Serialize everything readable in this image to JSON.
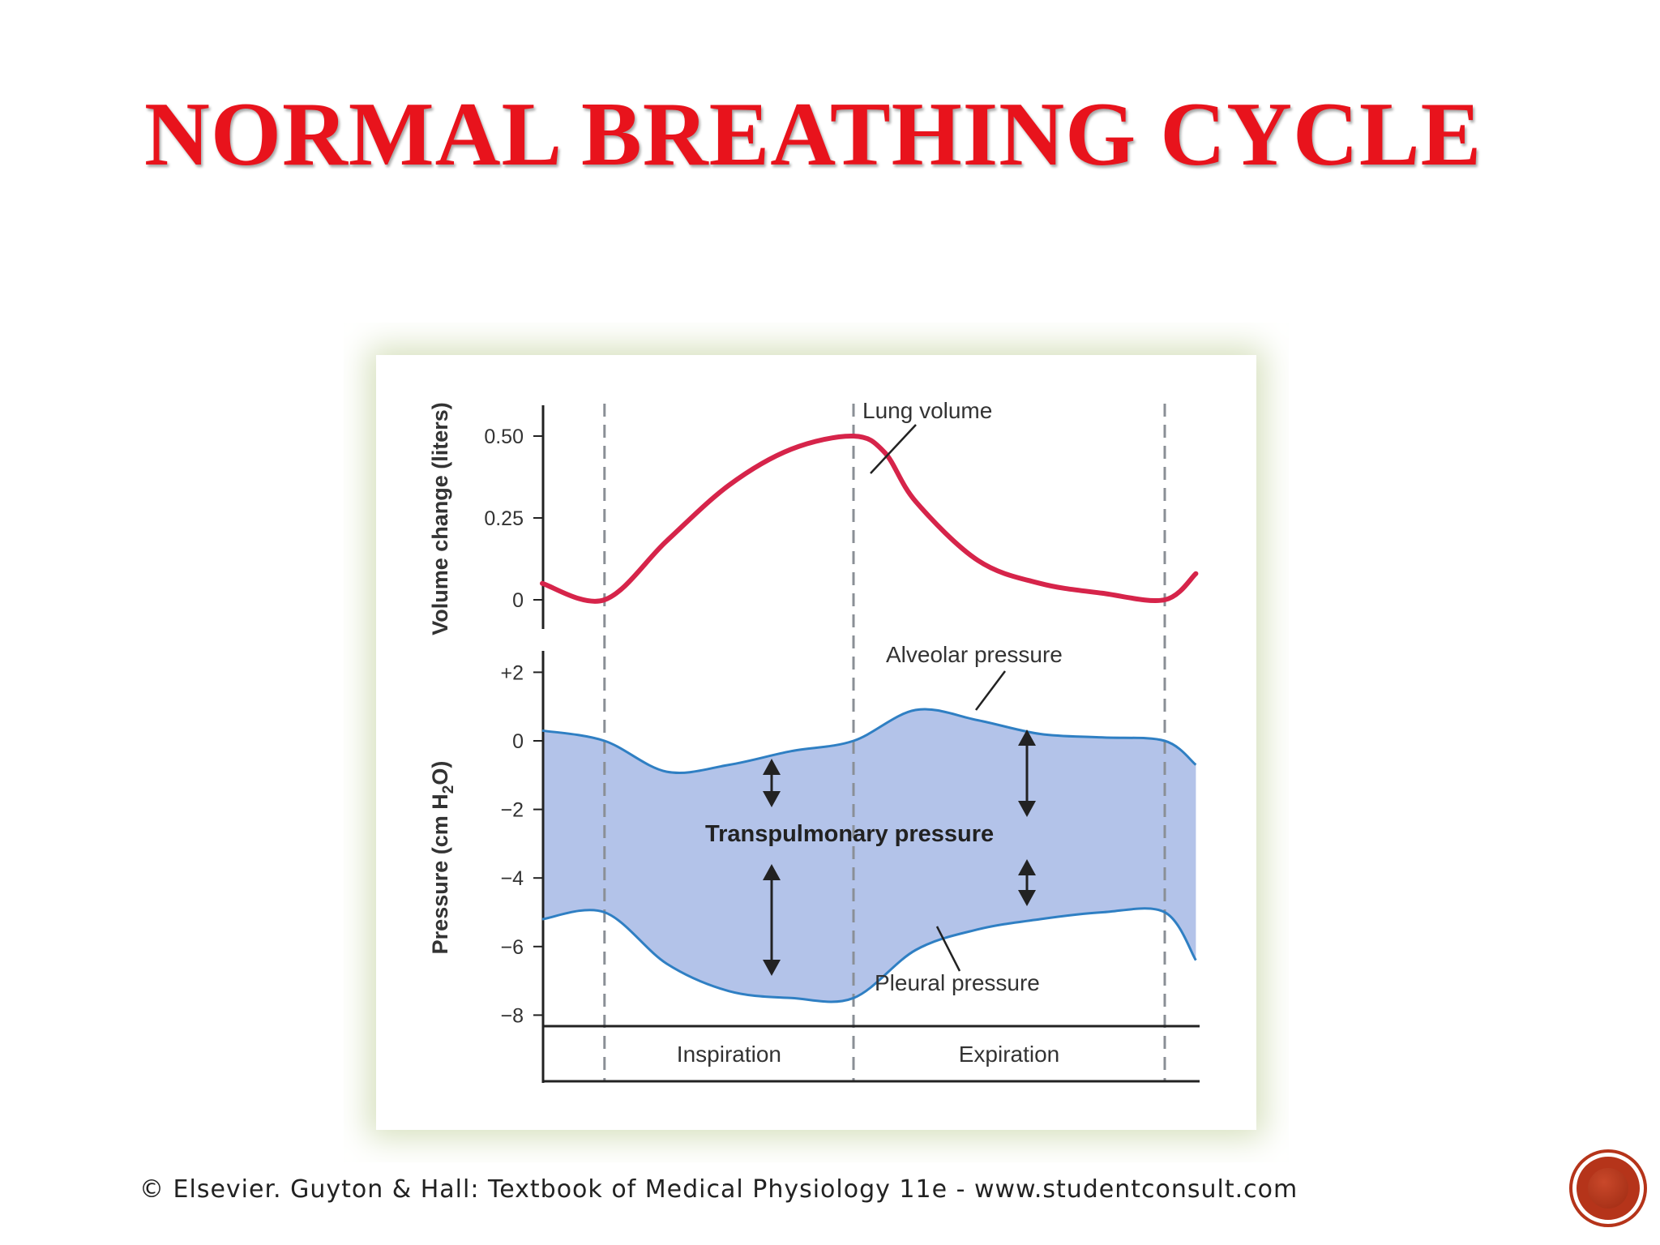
{
  "slide": {
    "title": "NORMAL BREATHING CYCLE",
    "caption": "© Elsevier. Guyton & Hall: Textbook of Medical Physiology 11e - www.studentconsult.com",
    "colors": {
      "title": "#e8131c",
      "lung_volume_line": "#d6244a",
      "pressure_lines": "#2f7fc3",
      "pressure_fill": "#b3c3e9",
      "figure_frame": "#d6e0bd",
      "nav_badge": "#b5341a"
    },
    "nav_badge_icon": "circle-badge-icon"
  },
  "chart_data": [
    {
      "type": "line",
      "title": "",
      "xlabel": "",
      "ylabel": "Volume change (liters)",
      "ylim": [
        -0.02,
        0.6
      ],
      "yticks": [
        "0.50",
        "0.25",
        "0"
      ],
      "ytick_values": [
        0.5,
        0.25,
        0
      ],
      "x_unit": "fraction of breathing cycle",
      "series": [
        {
          "name": "Lung volume",
          "x": [
            0.0,
            0.1,
            0.2,
            0.3,
            0.4,
            0.5,
            0.55,
            0.6,
            0.7,
            0.8,
            0.9,
            1.0,
            1.05
          ],
          "values": [
            0.05,
            0.0,
            0.18,
            0.35,
            0.46,
            0.5,
            0.45,
            0.3,
            0.12,
            0.05,
            0.02,
            0.0,
            0.08
          ]
        }
      ],
      "annotations": [
        "Lung volume"
      ]
    },
    {
      "type": "area",
      "title": "",
      "ylabel": "Pressure (cm H2O)",
      "ylim": [
        -8.5,
        2.3
      ],
      "yticks": [
        "+2",
        "0",
        "−2",
        "−4",
        "−6",
        "−8"
      ],
      "ytick_values": [
        2,
        0,
        -2,
        -4,
        -6,
        -8
      ],
      "series": [
        {
          "name": "Alveolar pressure",
          "x": [
            0.0,
            0.1,
            0.2,
            0.3,
            0.4,
            0.5,
            0.6,
            0.7,
            0.8,
            0.9,
            1.0,
            1.05
          ],
          "values": [
            0.3,
            0.0,
            -0.9,
            -0.7,
            -0.3,
            0.0,
            0.9,
            0.6,
            0.2,
            0.1,
            0.0,
            -0.7
          ]
        },
        {
          "name": "Pleural pressure",
          "x": [
            0.0,
            0.1,
            0.2,
            0.3,
            0.4,
            0.5,
            0.6,
            0.7,
            0.8,
            0.9,
            1.0,
            1.05
          ],
          "values": [
            -5.2,
            -5.0,
            -6.5,
            -7.3,
            -7.5,
            -7.5,
            -6.1,
            -5.5,
            -5.2,
            -5.0,
            -5.0,
            -6.4
          ]
        }
      ],
      "annotations": [
        "Alveolar pressure",
        "Pleural pressure",
        "Transpulmonary pressure"
      ],
      "phase_labels": [
        "Inspiration",
        "Expiration"
      ]
    }
  ]
}
